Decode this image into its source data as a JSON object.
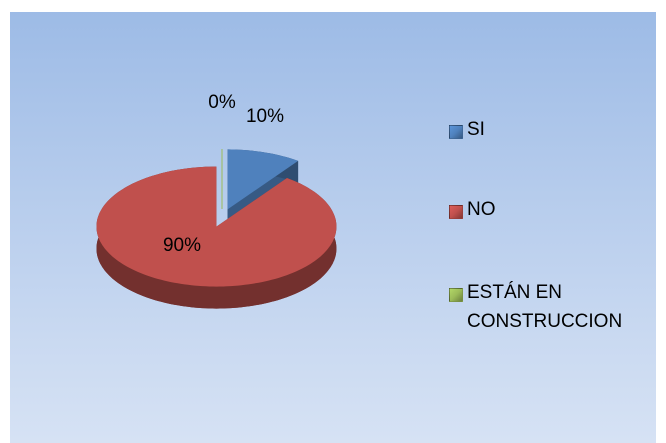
{
  "chart_data": {
    "type": "pie",
    "categories": [
      "SI",
      "NO",
      "ESTÁN EN CONSTRUCCION"
    ],
    "values": [
      10,
      90,
      0
    ],
    "value_labels": [
      "10%",
      "90%",
      "0%"
    ],
    "colors": [
      "#4f81bd",
      "#c0504d",
      "#9bbb59"
    ],
    "legend": "right",
    "three_d": true,
    "exploded": true
  }
}
